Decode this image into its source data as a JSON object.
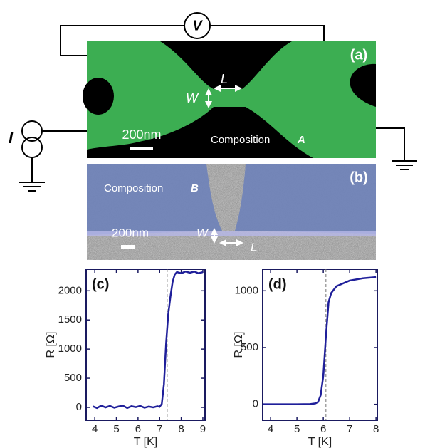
{
  "circuit": {
    "voltmeter": "V",
    "current_source": "I"
  },
  "panel_a": {
    "label": "(a)",
    "length": "L",
    "width": "W",
    "scale_bar": "200nm",
    "composition": "Composition",
    "composition_letter": "A"
  },
  "panel_b": {
    "label": "(b)",
    "length": "L",
    "width": "W",
    "scale_bar": "200nm",
    "composition": "Composition",
    "composition_letter": "B"
  },
  "chart_data": [
    {
      "type": "line",
      "panel_label": "(c)",
      "x_label": "T [K]",
      "y_label": "R [Ω]",
      "color": "#1f1f9a",
      "x": [
        3.9,
        4.1,
        4.3,
        4.5,
        4.7,
        4.9,
        5.1,
        5.3,
        5.5,
        5.7,
        5.9,
        6.1,
        6.3,
        6.5,
        6.7,
        6.9,
        7.0,
        7.1,
        7.2,
        7.3,
        7.4,
        7.5,
        7.6,
        7.7,
        7.8,
        8.0,
        8.2,
        8.4,
        8.6,
        8.8,
        9.0
      ],
      "values": [
        20,
        -10,
        30,
        0,
        25,
        -5,
        15,
        30,
        -10,
        20,
        5,
        25,
        -5,
        15,
        0,
        20,
        10,
        60,
        400,
        1100,
        1600,
        1900,
        2150,
        2280,
        2320,
        2300,
        2330,
        2310,
        2330,
        2300,
        2320
      ],
      "xlim": [
        3.6,
        9.1
      ],
      "ylim": [
        -220,
        2370
      ],
      "xticks": [
        4,
        5,
        6,
        7,
        8,
        9
      ],
      "yticks": [
        0,
        500,
        1000,
        1500,
        2000
      ],
      "vline_x": 7.35
    },
    {
      "type": "line",
      "panel_label": "(d)",
      "x_label": "T [K]",
      "y_label": "R [Ω]",
      "color": "#1f1f9a",
      "x": [
        3.7,
        4.5,
        5.0,
        5.5,
        5.7,
        5.8,
        5.9,
        6.0,
        6.1,
        6.2,
        6.3,
        6.5,
        7.0,
        7.5,
        8.0
      ],
      "values": [
        0,
        0,
        0,
        2,
        8,
        20,
        80,
        250,
        600,
        900,
        980,
        1040,
        1090,
        1110,
        1120
      ],
      "xlim": [
        3.7,
        8.05
      ],
      "ylim": [
        -140,
        1190
      ],
      "xticks": [
        4,
        5,
        6,
        7,
        8
      ],
      "yticks": [
        0,
        500,
        1000
      ],
      "vline_x": 6.1
    }
  ]
}
